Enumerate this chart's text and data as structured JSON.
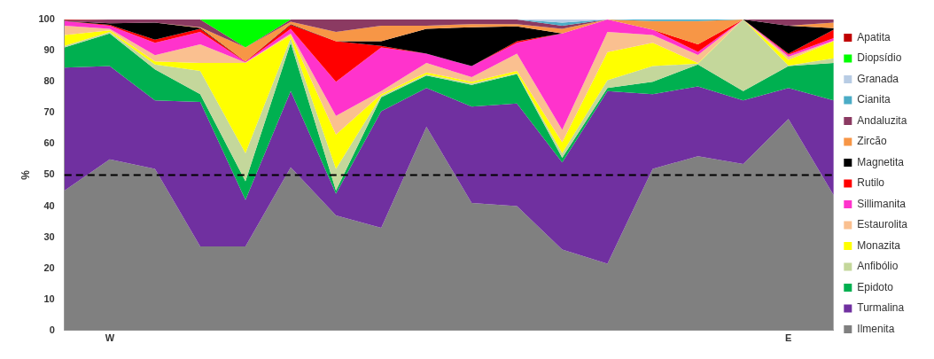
{
  "chart_data": {
    "type": "area",
    "stacked": true,
    "ylabel": "%",
    "categories": [
      null,
      "W",
      null,
      null,
      null,
      null,
      null,
      null,
      null,
      null,
      null,
      null,
      null,
      null,
      null,
      null,
      "E",
      null
    ],
    "ylim": [
      0,
      100
    ],
    "yticks": [
      0,
      10,
      20,
      30,
      40,
      50,
      60,
      70,
      80,
      90,
      100
    ],
    "grid": false,
    "legend": "right",
    "ref_lines": [
      {
        "axis": "y",
        "value": 50,
        "color": "#000000",
        "line_style": "dashed"
      }
    ],
    "series": [
      {
        "name": "Ilmenita",
        "color": "#808080",
        "values": [
          45,
          55,
          52,
          27,
          27,
          52.5,
          37,
          33,
          65.5,
          41,
          40,
          26,
          21.5,
          52,
          56,
          53.5,
          68,
          43.5
        ]
      },
      {
        "name": "Turmalina",
        "color": "#7030a0",
        "values": [
          39.5,
          30,
          22,
          46.5,
          15,
          24.5,
          7,
          37.5,
          12.5,
          31,
          33,
          28,
          55.5,
          24,
          22.5,
          20.5,
          10,
          30.5
        ]
      },
      {
        "name": "Epidoto",
        "color": "#00b050",
        "values": [
          6.5,
          10.5,
          10,
          2.5,
          6,
          15.5,
          1,
          4.5,
          4,
          7,
          9.5,
          1.5,
          1,
          4,
          7,
          3,
          7,
          12
        ]
      },
      {
        "name": "Anfibólio",
        "color": "#c4d79b",
        "values": [
          0.5,
          0.5,
          1.5,
          7.5,
          9,
          1.5,
          7,
          0.5,
          0.3,
          0.5,
          0.2,
          1.5,
          2.5,
          5,
          0.3,
          23,
          0.2,
          1.5
        ]
      },
      {
        "name": "Monazita",
        "color": "#ffff00",
        "values": [
          3.5,
          0.5,
          1,
          2.5,
          29,
          1,
          11,
          0.5,
          0.7,
          0.5,
          0.8,
          3.5,
          9,
          7.5,
          0.2,
          0,
          1.8,
          5.5
        ]
      },
      {
        "name": "Estaurolita",
        "color": "#fac090",
        "values": [
          3,
          0.5,
          2,
          6,
          0.2,
          0.5,
          6,
          1,
          3,
          1.5,
          5.5,
          4,
          6.5,
          2.5,
          2.6,
          0,
          1,
          0.2
        ]
      },
      {
        "name": "Sillimanita",
        "color": "#ff33cc",
        "values": [
          1.5,
          1,
          4,
          4,
          0.2,
          1.5,
          11,
          14,
          3,
          3.5,
          3.5,
          31,
          4,
          1.7,
          1,
          0,
          0.7,
          0.8
        ]
      },
      {
        "name": "Rutilo",
        "color": "#ff0000",
        "values": [
          0,
          0.3,
          1,
          1,
          0.1,
          1.3,
          13,
          0.5,
          0,
          0,
          0.5,
          0,
          null,
          0,
          2.4,
          0,
          0.3,
          2.7
        ]
      },
      {
        "name": "Magnetita",
        "color": "#000000",
        "values": [
          0,
          0.5,
          5.5,
          0.3,
          0,
          0.2,
          0,
          1.5,
          8,
          12.5,
          4.8,
          0,
          null,
          null,
          null,
          0,
          9,
          0.5
        ]
      },
      {
        "name": "Zircão",
        "color": "#f79646",
        "values": [
          null,
          null,
          0,
          0.2,
          4.5,
          0.8,
          3,
          5,
          1,
          1,
          0.7,
          1.5,
          0,
          2.8,
          7.5,
          0,
          0,
          1.8
        ]
      },
      {
        "name": "Andaluzita",
        "color": "#8b3a62",
        "values": [
          0.3,
          1.2,
          1,
          2.5,
          0,
          0.7,
          4,
          2,
          2,
          1.5,
          1.5,
          1,
          0,
          null,
          null,
          0,
          2,
          1
        ]
      },
      {
        "name": "Cianita",
        "color": "#4bacc6",
        "values": [
          null,
          null,
          null,
          null,
          null,
          null,
          null,
          null,
          null,
          null,
          0,
          1,
          0,
          0.5,
          0.5,
          0,
          null,
          null
        ]
      },
      {
        "name": "Granada",
        "color": "#b8cce4",
        "values": [
          null,
          null,
          null,
          null,
          null,
          null,
          null,
          null,
          null,
          null,
          0,
          1,
          0,
          null,
          null,
          null,
          null,
          null
        ]
      },
      {
        "name": "Diopsídio",
        "color": "#00ff00",
        "values": [
          null,
          null,
          null,
          0,
          9,
          0,
          null,
          null,
          null,
          null,
          null,
          null,
          null,
          null,
          null,
          null,
          null,
          null
        ]
      },
      {
        "name": "Apatita",
        "color": "#c00000",
        "values": [
          0.2,
          0,
          null,
          null,
          null,
          null,
          null,
          null,
          null,
          null,
          null,
          null,
          null,
          null,
          null,
          null,
          null,
          null
        ]
      }
    ]
  }
}
